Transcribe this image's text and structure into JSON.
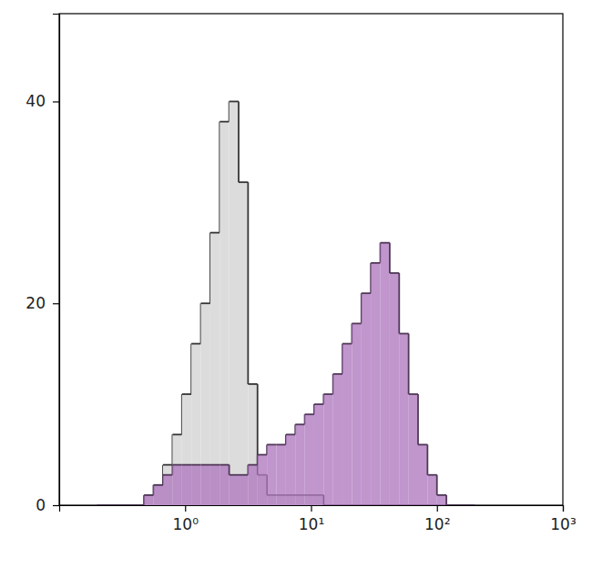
{
  "chart_data": {
    "type": "histogram",
    "log": "x",
    "bins": [
      0.2,
      0.237,
      0.282,
      0.335,
      0.398,
      0.473,
      0.562,
      0.668,
      0.794,
      0.944,
      1.122,
      1.334,
      1.585,
      1.884,
      2.239,
      2.661,
      3.162,
      3.758,
      4.467,
      5.309,
      6.31,
      7.499,
      8.913,
      10.59,
      12.59,
      14.96,
      17.78,
      21.13,
      25.12,
      29.85,
      35.48,
      42.17,
      50.12,
      59.57,
      70.79,
      84.14,
      100,
      118.9,
      141.3,
      167.9,
      199.5
    ],
    "series": [
      {
        "color": "#dcdcdc",
        "values": [
          0,
          0,
          0,
          0,
          0,
          1,
          2,
          4,
          7,
          11,
          16,
          20,
          27,
          38,
          40,
          32,
          12,
          3,
          1,
          1,
          1,
          1,
          1,
          1,
          0,
          0,
          0,
          0,
          0,
          0,
          0,
          0,
          0,
          0,
          0,
          0,
          0,
          0,
          0,
          0
        ]
      },
      {
        "color": "#b07cc0",
        "values": [
          0,
          0,
          0,
          0,
          0,
          1,
          2,
          3,
          4,
          4,
          4,
          4,
          4,
          4,
          3,
          3,
          4,
          5,
          6,
          6,
          7,
          8,
          9,
          10,
          11,
          13,
          16,
          18,
          21,
          24,
          26,
          23,
          17,
          11,
          6,
          3,
          1,
          0,
          0,
          0
        ]
      }
    ],
    "xlim": [
      0.1,
      1000
    ],
    "xticks": [
      {
        "value": 1,
        "label": "10⁰"
      },
      {
        "value": 10,
        "label": "10¹"
      },
      {
        "value": 100,
        "label": "10²"
      },
      {
        "value": 1000,
        "label": "10³"
      }
    ],
    "ylim": [
      0,
      48.7
    ],
    "yticks": [
      0,
      20,
      40
    ]
  }
}
